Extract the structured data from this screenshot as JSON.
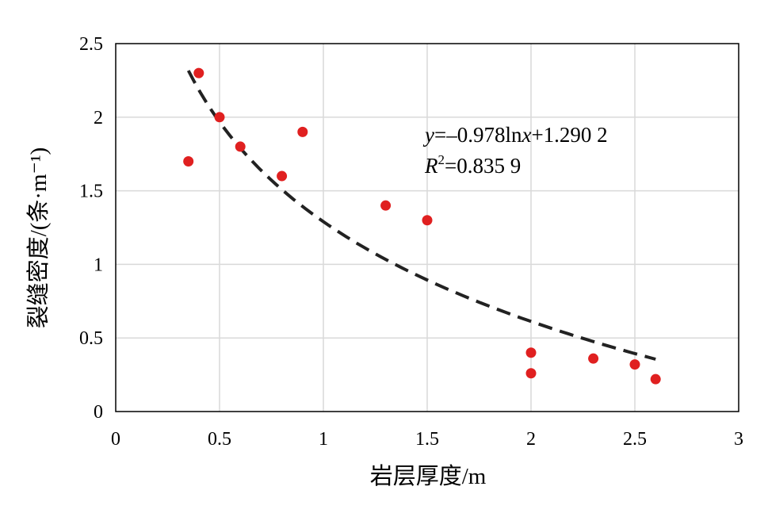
{
  "chart_data": {
    "type": "scatter",
    "xlabel": "岩层厚度/m",
    "ylabel": "裂缝密度/(条·m⁻¹)",
    "xlim": [
      0,
      3
    ],
    "ylim": [
      0,
      2.5
    ],
    "x_ticks": [
      0,
      0.5,
      1,
      1.5,
      2,
      2.5,
      3
    ],
    "x_tick_labels": [
      "0",
      "0.5",
      "1",
      "1.5",
      "2",
      "2.5",
      "3"
    ],
    "y_ticks": [
      0,
      0.5,
      1,
      1.5,
      2,
      2.5
    ],
    "y_tick_labels": [
      "0",
      "0.5",
      "1",
      "1.5",
      "2",
      "2.5"
    ],
    "grid": true,
    "series": [
      {
        "marker_color": "#e02020",
        "points": [
          {
            "x": 0.35,
            "y": 1.7
          },
          {
            "x": 0.4,
            "y": 2.3
          },
          {
            "x": 0.5,
            "y": 2.0
          },
          {
            "x": 0.6,
            "y": 1.8
          },
          {
            "x": 0.8,
            "y": 1.6
          },
          {
            "x": 0.9,
            "y": 1.9
          },
          {
            "x": 1.3,
            "y": 1.4
          },
          {
            "x": 1.5,
            "y": 1.3
          },
          {
            "x": 2.0,
            "y": 0.4
          },
          {
            "x": 2.0,
            "y": 0.26
          },
          {
            "x": 2.3,
            "y": 0.36
          },
          {
            "x": 2.5,
            "y": 0.32
          },
          {
            "x": 2.6,
            "y": 0.22
          }
        ]
      }
    ],
    "trendline": {
      "type": "logarithmic",
      "a": -0.978,
      "b": 1.2902,
      "x_range": [
        0.35,
        2.6
      ],
      "color": "#222222",
      "style": "dashed"
    },
    "annotation": {
      "equation": {
        "y": "y",
        "eq1": "=–0.978ln",
        "x": "x",
        "eq2": "+1.290 2"
      },
      "r2": {
        "R": "R",
        "sup": "2",
        "val": "=0.835 9"
      }
    }
  }
}
